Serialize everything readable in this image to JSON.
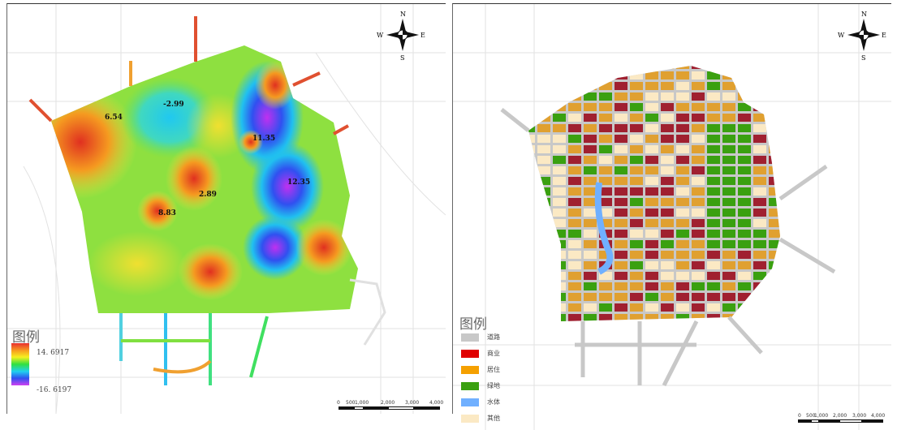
{
  "left_map": {
    "legend_title": "图例",
    "legend_max": "14. 6917",
    "legend_min": "-16. 6197",
    "point_labels": [
      "6.54",
      "-2.99",
      "11.35",
      "12.35",
      "2.89",
      "8.83"
    ],
    "ramp_colors": [
      "#e83030",
      "#f79a20",
      "#f6f020",
      "#30e040",
      "#20d0f0",
      "#3050f0",
      "#d040f0"
    ]
  },
  "right_map": {
    "legend_title": "图例",
    "legend_items": [
      {
        "label": "道路",
        "color": "#c8c8c8"
      },
      {
        "label": "商业",
        "color": "#e00000"
      },
      {
        "label": "居住",
        "color": "#f5a000"
      },
      {
        "label": "绿地",
        "color": "#3aa010"
      },
      {
        "label": "水体",
        "color": "#70b0ff"
      },
      {
        "label": "其他",
        "color": "#fbe9c4"
      }
    ]
  },
  "compass": {
    "n": "N",
    "s": "S",
    "e": "E",
    "w": "W"
  },
  "scale_bar": {
    "ticks": [
      "0",
      "500",
      "1,000",
      "2,000",
      "3,000",
      "4,000"
    ]
  }
}
